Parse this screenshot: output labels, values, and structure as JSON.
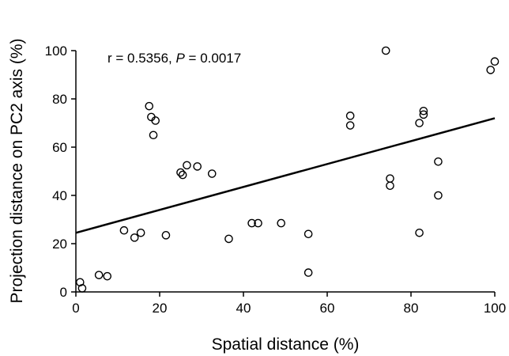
{
  "chart_data": {
    "type": "scatter",
    "xlabel": "Spatial distance (%)",
    "ylabel": "Projection distance on PC2 axis (%)",
    "xlim": [
      0,
      100
    ],
    "ylim": [
      0,
      100
    ],
    "xticks": [
      "0",
      "20",
      "40",
      "60",
      "80",
      "100"
    ],
    "yticks": [
      "0",
      "20",
      "40",
      "60",
      "80",
      "100"
    ],
    "grid": false,
    "annotation": {
      "r_text": "r = 0.5356, ",
      "p_symbol": "P",
      "p_text": " = 0.0017"
    },
    "fit_line": {
      "x": [
        0,
        100
      ],
      "y": [
        24.5,
        72
      ]
    },
    "points": [
      {
        "x": 1,
        "y": 4
      },
      {
        "x": 1.5,
        "y": 1.5
      },
      {
        "x": 5.5,
        "y": 7
      },
      {
        "x": 7.5,
        "y": 6.5
      },
      {
        "x": 11.5,
        "y": 25.5
      },
      {
        "x": 14,
        "y": 22.5
      },
      {
        "x": 15.5,
        "y": 24.5
      },
      {
        "x": 17.5,
        "y": 77
      },
      {
        "x": 18,
        "y": 72.5
      },
      {
        "x": 18.5,
        "y": 65
      },
      {
        "x": 19,
        "y": 71
      },
      {
        "x": 21.5,
        "y": 23.5
      },
      {
        "x": 25,
        "y": 49.5
      },
      {
        "x": 25.5,
        "y": 48.5
      },
      {
        "x": 26.5,
        "y": 52.5
      },
      {
        "x": 29,
        "y": 52
      },
      {
        "x": 32.5,
        "y": 49
      },
      {
        "x": 36.5,
        "y": 22
      },
      {
        "x": 42,
        "y": 28.5
      },
      {
        "x": 43.5,
        "y": 28.5
      },
      {
        "x": 49,
        "y": 28.5
      },
      {
        "x": 55.5,
        "y": 24
      },
      {
        "x": 55.5,
        "y": 8
      },
      {
        "x": 65.5,
        "y": 73
      },
      {
        "x": 65.5,
        "y": 69
      },
      {
        "x": 74,
        "y": 100
      },
      {
        "x": 75,
        "y": 47
      },
      {
        "x": 75,
        "y": 44
      },
      {
        "x": 82,
        "y": 70
      },
      {
        "x": 82,
        "y": 24.5
      },
      {
        "x": 83,
        "y": 75
      },
      {
        "x": 83,
        "y": 73.5
      },
      {
        "x": 86.5,
        "y": 54
      },
      {
        "x": 86.5,
        "y": 40
      },
      {
        "x": 99,
        "y": 92
      },
      {
        "x": 100,
        "y": 95.5
      }
    ]
  }
}
